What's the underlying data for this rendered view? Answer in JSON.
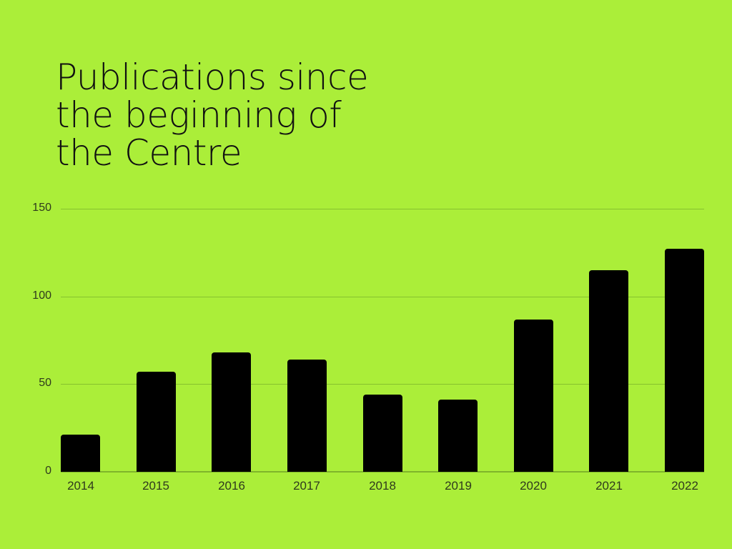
{
  "title_lines": [
    "Publications since",
    "the beginning of",
    "the Centre"
  ],
  "colors": {
    "background": "#abee39",
    "bars": "#000000",
    "grid": "#86c22e",
    "text": "#2f3a1d"
  },
  "chart_data": {
    "type": "bar",
    "title": "Publications since the beginning of the Centre",
    "categories": [
      "2014",
      "2015",
      "2016",
      "2017",
      "2018",
      "2019",
      "2020",
      "2021",
      "2022"
    ],
    "values": [
      21,
      57,
      68,
      64,
      44,
      41,
      87,
      115,
      127
    ],
    "xlabel": "",
    "ylabel": "",
    "ylim": [
      0,
      150
    ],
    "yticks": [
      0,
      50,
      100,
      150
    ],
    "grid": true,
    "legend": null
  }
}
